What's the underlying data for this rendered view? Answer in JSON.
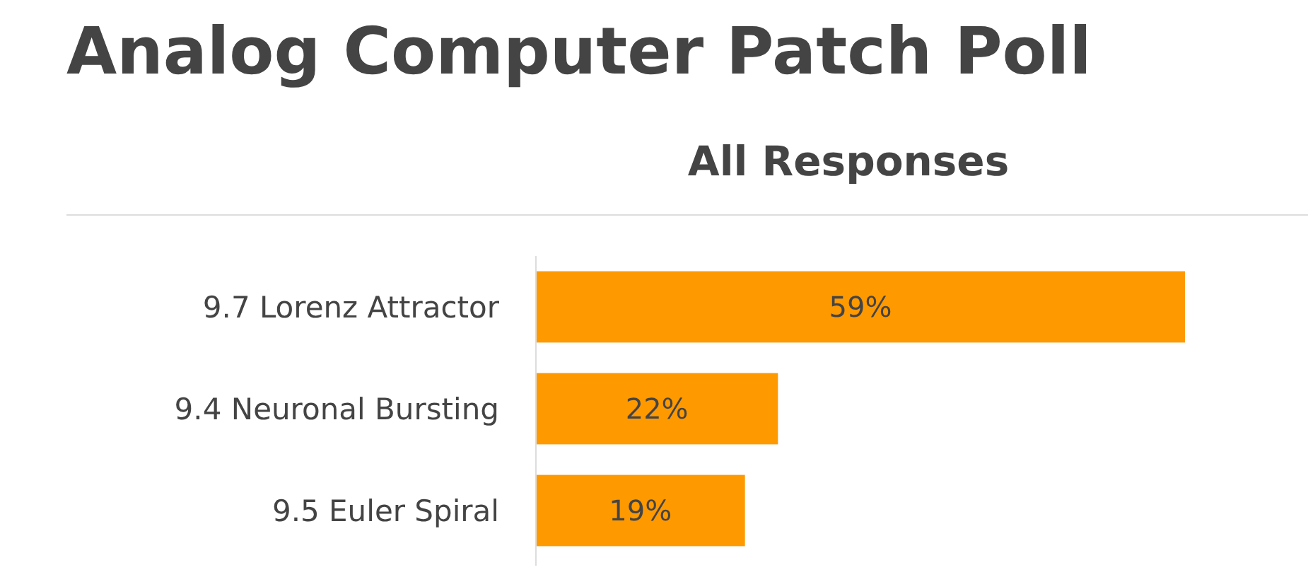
{
  "chart_data": {
    "type": "bar",
    "orientation": "horizontal",
    "title": "Analog Computer Patch Poll",
    "subtitle": "All Responses",
    "categories": [
      "9.7 Lorenz Attractor",
      "9.4 Neuronal Bursting",
      "9.5 Euler Spiral"
    ],
    "values": [
      59,
      22,
      19
    ],
    "value_labels": [
      "59%",
      "22%",
      "19%"
    ],
    "color": "#ff9900"
  }
}
